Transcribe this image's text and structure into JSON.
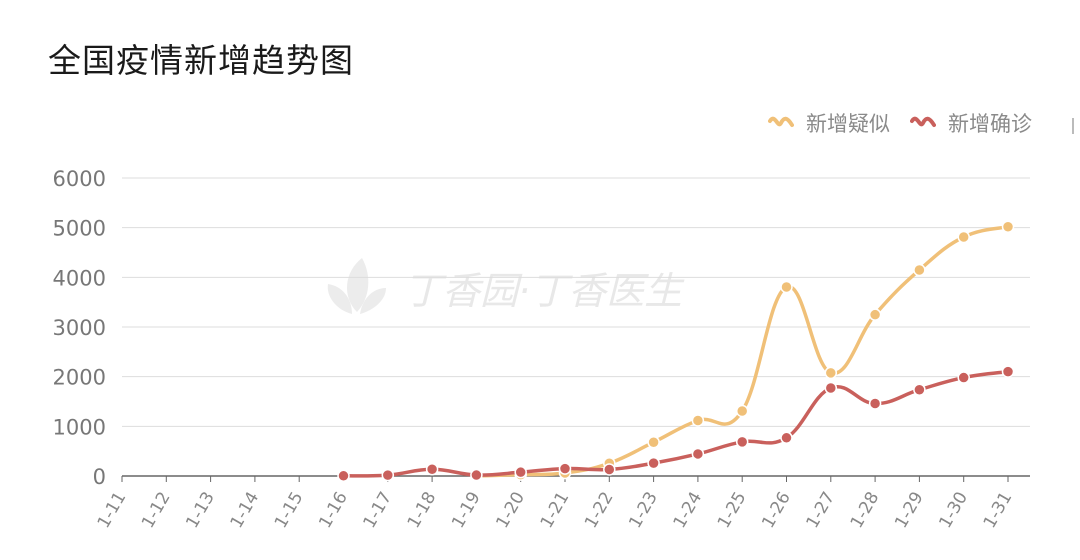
{
  "title": "全国疫情新增趋势图",
  "watermark_text": "丁香园·丁香医生",
  "chart_data": {
    "type": "line",
    "title": "全国疫情新增趋势图",
    "categories": [
      "1-11",
      "1-12",
      "1-13",
      "1-14",
      "1-15",
      "1-16",
      "1-17",
      "1-18",
      "1-19",
      "1-20",
      "1-21",
      "1-22",
      "1-23",
      "1-24",
      "1-25",
      "1-26",
      "1-27",
      "1-28",
      "1-29",
      "1-30",
      "1-31"
    ],
    "ylim": [
      0,
      6000
    ],
    "yticks": [
      0,
      1000,
      2000,
      3000,
      4000,
      5000,
      6000
    ],
    "grid": true,
    "legend_position": "top-right",
    "series": [
      {
        "name": "新增疑似",
        "color": "#f0c078",
        "values": [
          null,
          null,
          null,
          null,
          null,
          null,
          null,
          null,
          0,
          27,
          60,
          257,
          680,
          1118,
          1309,
          3806,
          2077,
          3248,
          4148,
          4812,
          5019
        ]
      },
      {
        "name": "新增确诊",
        "color": "#c9605c",
        "values": [
          null,
          null,
          null,
          null,
          null,
          4,
          17,
          136,
          19,
          77,
          149,
          131,
          259,
          444,
          688,
          769,
          1771,
          1459,
          1737,
          1982,
          2102
        ]
      }
    ]
  }
}
